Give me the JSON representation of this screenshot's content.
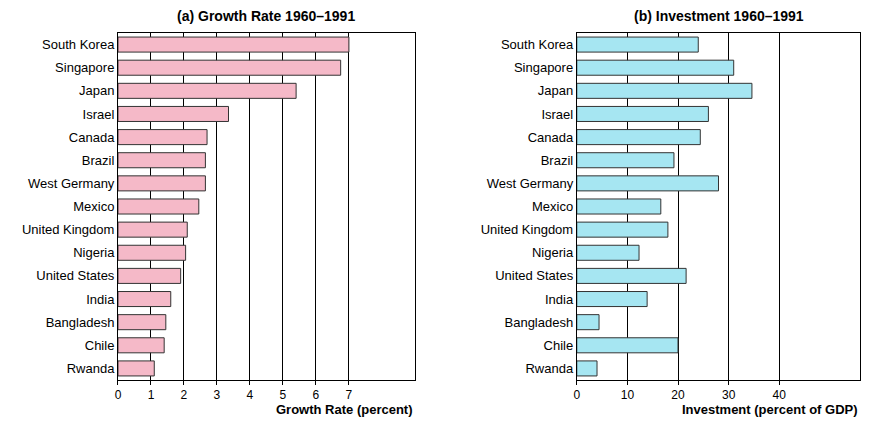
{
  "chart_data": [
    {
      "type": "bar",
      "title": "(a) Growth Rate 1960–1991",
      "xlabel": "Growth Rate (percent)",
      "orientation": "horizontal",
      "categories": [
        "South Korea",
        "Singapore",
        "Japan",
        "Israel",
        "Canada",
        "Brazil",
        "West Germany",
        "Mexico",
        "United Kingdom",
        "Nigeria",
        "United States",
        "India",
        "Bangladesh",
        "Chile",
        "Rwanda"
      ],
      "values": [
        7.0,
        6.75,
        5.4,
        3.35,
        2.7,
        2.65,
        2.65,
        2.45,
        2.1,
        2.05,
        1.9,
        1.6,
        1.45,
        1.4,
        1.1
      ],
      "color": "#f5b9c8",
      "xlim": [
        0,
        9
      ],
      "xticks": [
        0,
        1,
        2,
        3,
        4,
        5,
        6,
        7
      ],
      "grid": true
    },
    {
      "type": "bar",
      "title": "(b) Investment 1960–1991",
      "xlabel": "Investment (percent of GDP)",
      "orientation": "horizontal",
      "categories": [
        "South Korea",
        "Singapore",
        "Japan",
        "Israel",
        "Canada",
        "Brazil",
        "West Germany",
        "Mexico",
        "United Kingdom",
        "Nigeria",
        "United States",
        "India",
        "Bangladesh",
        "Chile",
        "Rwanda"
      ],
      "values": [
        24,
        31,
        34.6,
        26,
        24.4,
        19.2,
        28,
        16.6,
        18,
        12.3,
        21.6,
        13.9,
        4.4,
        20,
        4.0
      ],
      "color": "#a6e6f2",
      "xlim": [
        0,
        56
      ],
      "xticks": [
        0,
        10,
        20,
        30,
        40
      ],
      "grid": true
    }
  ]
}
